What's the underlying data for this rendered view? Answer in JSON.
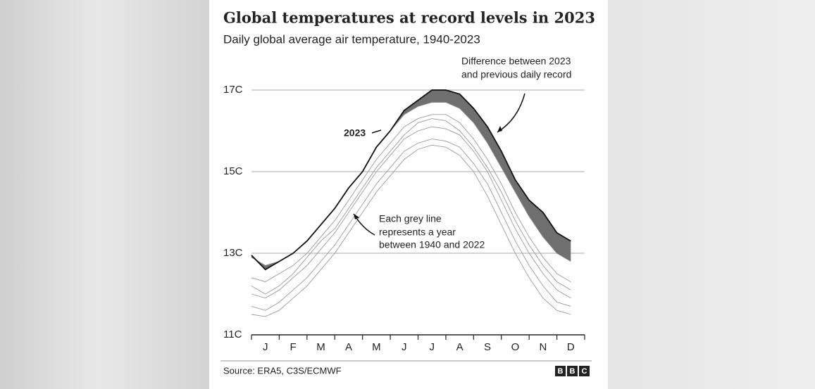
{
  "chart_data": {
    "type": "line",
    "title": "Global temperatures at record levels in 2023",
    "subtitle": "Daily global average air temperature, 1940-2023",
    "categories": [
      null,
      "J",
      null,
      "F",
      null,
      "M",
      null,
      "A",
      null,
      "M",
      null,
      "J",
      null,
      "J",
      null,
      "A",
      null,
      "S",
      null,
      "O",
      null,
      "N",
      null,
      "D"
    ],
    "ylim": [
      11,
      17.5
    ],
    "yticks": [
      {
        "value": 11,
        "label": "11C"
      },
      {
        "value": 13,
        "label": "13C"
      },
      {
        "value": 15,
        "label": "15C"
      },
      {
        "value": 17,
        "label": "17C"
      }
    ],
    "grid": true,
    "series": [
      {
        "name": "2023",
        "color": "#111111",
        "values": [
          12.95,
          12.6,
          12.8,
          13.0,
          13.3,
          13.7,
          14.1,
          14.6,
          15.0,
          15.6,
          16.0,
          16.5,
          16.75,
          17.0,
          17.0,
          16.9,
          16.55,
          16.1,
          15.5,
          14.8,
          14.3,
          14.0,
          13.5,
          13.3
        ]
      },
      {
        "color": "#8a8a8a",
        "values": [
          12.9,
          12.7,
          12.8,
          13.0,
          13.3,
          13.7,
          14.1,
          14.6,
          15.0,
          15.6,
          16.0,
          16.4,
          16.6,
          16.7,
          16.7,
          16.55,
          16.2,
          15.7,
          15.1,
          14.5,
          13.9,
          13.4,
          13.0,
          12.8
        ]
      },
      {
        "color": "#9a9a9a",
        "values": [
          12.4,
          12.3,
          12.5,
          12.7,
          13.0,
          13.4,
          13.8,
          14.3,
          14.8,
          15.3,
          15.7,
          16.1,
          16.3,
          16.4,
          16.4,
          16.2,
          15.8,
          15.3,
          14.7,
          14.0,
          13.4,
          12.9,
          12.5,
          12.3
        ]
      },
      {
        "color": "#9a9a9a",
        "values": [
          12.0,
          11.9,
          12.1,
          12.4,
          12.7,
          13.1,
          13.5,
          14.0,
          14.5,
          15.0,
          15.4,
          15.8,
          16.0,
          16.1,
          16.05,
          15.9,
          15.5,
          15.0,
          14.3,
          13.6,
          13.0,
          12.5,
          12.1,
          11.9
        ]
      },
      {
        "color": "#9a9a9a",
        "values": [
          11.7,
          11.6,
          11.8,
          12.1,
          12.4,
          12.8,
          13.2,
          13.7,
          14.2,
          14.7,
          15.1,
          15.5,
          15.7,
          15.8,
          15.75,
          15.6,
          15.2,
          14.7,
          14.0,
          13.3,
          12.7,
          12.2,
          11.8,
          11.7
        ]
      },
      {
        "color": "#9a9a9a",
        "values": [
          11.5,
          11.45,
          11.6,
          11.9,
          12.2,
          12.6,
          13.0,
          13.5,
          14.0,
          14.5,
          14.9,
          15.3,
          15.55,
          15.65,
          15.6,
          15.4,
          15.0,
          14.4,
          13.7,
          13.0,
          12.4,
          11.9,
          11.6,
          11.5
        ]
      },
      {
        "color": "#9a9a9a",
        "values": [
          12.2,
          12.0,
          12.2,
          12.5,
          12.9,
          13.3,
          13.6,
          14.1,
          14.6,
          15.1,
          15.5,
          15.9,
          16.2,
          16.3,
          16.25,
          16.0,
          15.6,
          15.1,
          14.5,
          13.8,
          13.2,
          12.7,
          12.3,
          12.1
        ]
      }
    ],
    "annotations": {
      "difference": [
        "Difference between 2023",
        "and previous daily record"
      ],
      "grey": [
        "Each grey line",
        "represents a year",
        "between 1940 and 2022"
      ]
    },
    "source": "Source: ERA5, C3S/ECMWF",
    "logo": [
      "B",
      "B",
      "C"
    ]
  }
}
